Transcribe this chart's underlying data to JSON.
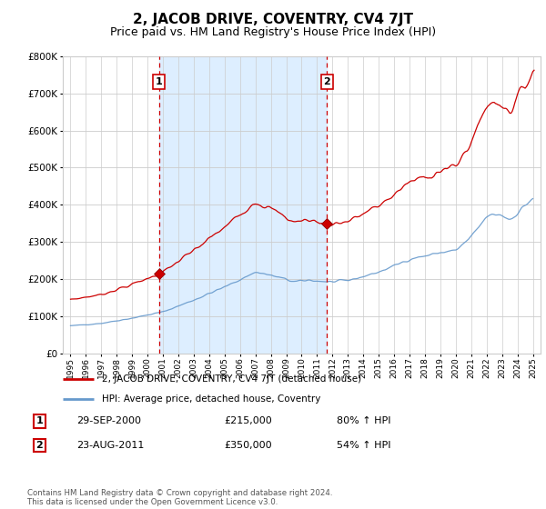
{
  "title": "2, JACOB DRIVE, COVENTRY, CV4 7JT",
  "subtitle": "Price paid vs. HM Land Registry's House Price Index (HPI)",
  "title_fontsize": 11,
  "subtitle_fontsize": 9,
  "background_color": "#ffffff",
  "plot_bg_color": "#ffffff",
  "grid_color": "#cccccc",
  "hpi_line_color": "#6699cc",
  "price_line_color": "#cc0000",
  "vline_color": "#cc0000",
  "shade_color": "#ddeeff",
  "ylim": [
    0,
    800000
  ],
  "yticks": [
    0,
    100000,
    200000,
    300000,
    400000,
    500000,
    600000,
    700000,
    800000
  ],
  "xlim_start": 1994.5,
  "xlim_end": 2025.5,
  "xticks": [
    1995,
    1996,
    1997,
    1998,
    1999,
    2000,
    2001,
    2002,
    2003,
    2004,
    2005,
    2006,
    2007,
    2008,
    2009,
    2010,
    2011,
    2012,
    2013,
    2014,
    2015,
    2016,
    2017,
    2018,
    2019,
    2020,
    2021,
    2022,
    2023,
    2024,
    2025
  ],
  "sale1_x": 2000.75,
  "sale1_y": 215000,
  "sale2_x": 2011.64,
  "sale2_y": 350000,
  "legend_line1": "2, JACOB DRIVE, COVENTRY, CV4 7JT (detached house)",
  "legend_line2": "HPI: Average price, detached house, Coventry",
  "annotation1_num": "1",
  "annotation1_date": "29-SEP-2000",
  "annotation1_price": "£215,000",
  "annotation1_hpi": "80% ↑ HPI",
  "annotation2_num": "2",
  "annotation2_date": "23-AUG-2011",
  "annotation2_price": "£350,000",
  "annotation2_hpi": "54% ↑ HPI",
  "footer": "Contains HM Land Registry data © Crown copyright and database right 2024.\nThis data is licensed under the Open Government Licence v3.0."
}
